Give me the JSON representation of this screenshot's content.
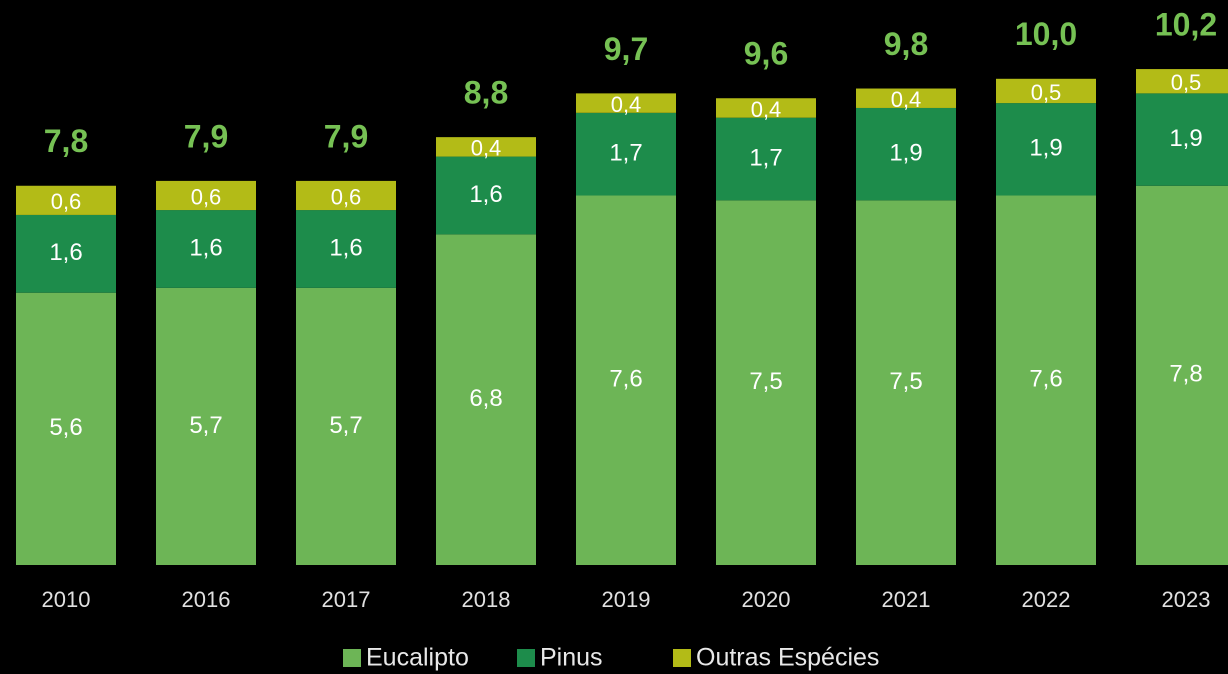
{
  "chart_data": {
    "type": "stacked_bar",
    "categories": [
      "2010",
      "2016",
      "2017",
      "2018",
      "2019",
      "2020",
      "2021",
      "2022",
      "2023"
    ],
    "series": [
      {
        "name": "Eucalipto",
        "color": "#6db556",
        "values": [
          5.6,
          5.7,
          5.7,
          6.8,
          7.6,
          7.5,
          7.5,
          7.6,
          7.8
        ],
        "value_labels": [
          "5,6",
          "5,7",
          "5,7",
          "6,8",
          "7,6",
          "7,5",
          "7,5",
          "7,6",
          "7,8"
        ]
      },
      {
        "name": "Pinus",
        "color": "#1d8c4b",
        "values": [
          1.6,
          1.6,
          1.6,
          1.6,
          1.7,
          1.7,
          1.9,
          1.9,
          1.9
        ],
        "value_labels": [
          "1,6",
          "1,6",
          "1,6",
          "1,6",
          "1,7",
          "1,7",
          "1,9",
          "1,9",
          "1,9"
        ]
      },
      {
        "name": "Outras Espécies",
        "color": "#b3bb17",
        "values": [
          0.6,
          0.6,
          0.6,
          0.4,
          0.4,
          0.4,
          0.4,
          0.5,
          0.5
        ],
        "value_labels": [
          "0,6",
          "0,6",
          "0,6",
          "0,4",
          "0,4",
          "0,4",
          "0,4",
          "0,5",
          "0,5"
        ]
      }
    ],
    "totals": [
      7.8,
      7.9,
      7.9,
      8.8,
      9.7,
      9.6,
      9.8,
      10.0,
      10.2
    ],
    "total_labels": [
      "7,8",
      "7,9",
      "7,9",
      "8,8",
      "9,7",
      "9,6",
      "9,8",
      "10,0",
      "10,2"
    ],
    "total_color": "#76c154",
    "ylim": [
      0,
      11.6
    ],
    "legend": "bottom"
  }
}
